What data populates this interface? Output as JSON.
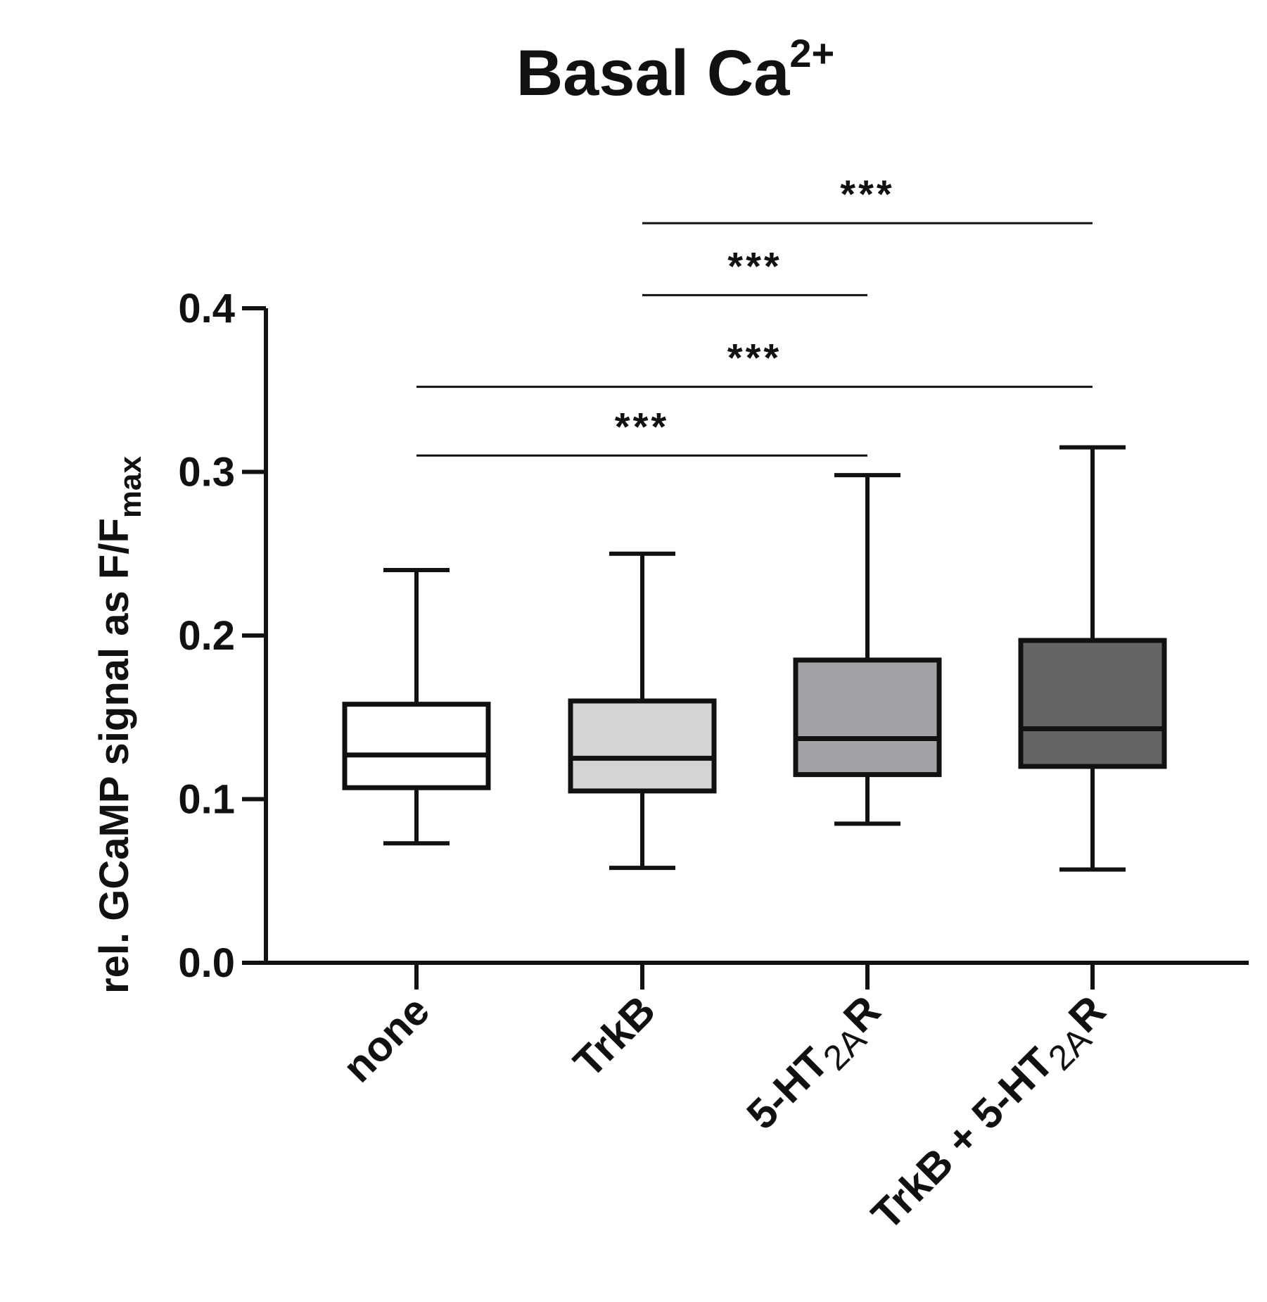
{
  "chart_data": {
    "type": "box",
    "title": {
      "main": "Basal Ca",
      "sup": "2+"
    },
    "ylabel": {
      "main": "rel. GCaMP signal as F/F",
      "sub": "max"
    },
    "ylim": [
      0.0,
      0.4
    ],
    "yticks": [
      "0.0",
      "0.1",
      "0.2",
      "0.3",
      "0.4"
    ],
    "grid": false,
    "categories": [
      {
        "main": "none",
        "sub": "",
        "tail": ""
      },
      {
        "main": "TrkB",
        "sub": "",
        "tail": ""
      },
      {
        "main": "5-HT",
        "sub": "2A",
        "tail": "R"
      },
      {
        "main": "TrkB + 5-HT",
        "sub": "2A",
        "tail": "R"
      }
    ],
    "boxes": [
      {
        "min": 0.073,
        "q1": 0.107,
        "median": 0.127,
        "q3": 0.158,
        "max": 0.24,
        "fill": "#ffffff"
      },
      {
        "min": 0.058,
        "q1": 0.105,
        "median": 0.125,
        "q3": 0.16,
        "max": 0.25,
        "fill": "#d4d4d4"
      },
      {
        "min": 0.085,
        "q1": 0.115,
        "median": 0.137,
        "q3": 0.185,
        "max": 0.298,
        "fill": "#a3a2a7"
      },
      {
        "min": 0.057,
        "q1": 0.12,
        "median": 0.143,
        "q3": 0.197,
        "max": 0.315,
        "fill": "#656565"
      }
    ],
    "significance": [
      {
        "from": 0,
        "to": 2,
        "y": 0.31,
        "label": "***"
      },
      {
        "from": 0,
        "to": 3,
        "y": 0.352,
        "label": "***"
      },
      {
        "from": 1,
        "to": 2,
        "y": 0.408,
        "label": "***"
      },
      {
        "from": 1,
        "to": 3,
        "y": 0.452,
        "label": "***"
      }
    ]
  }
}
